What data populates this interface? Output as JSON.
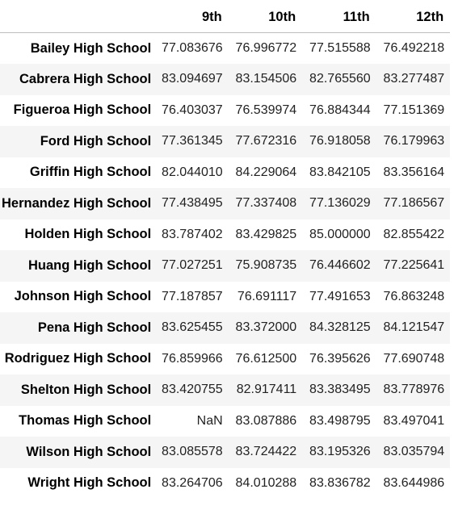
{
  "table": {
    "index_header": "",
    "columns": [
      "9th",
      "10th",
      "11th",
      "12th"
    ],
    "rows": [
      {
        "school": "Bailey High School",
        "values": [
          "77.083676",
          "76.996772",
          "77.515588",
          "76.492218"
        ]
      },
      {
        "school": "Cabrera High School",
        "values": [
          "83.094697",
          "83.154506",
          "82.765560",
          "83.277487"
        ]
      },
      {
        "school": "Figueroa High School",
        "values": [
          "76.403037",
          "76.539974",
          "76.884344",
          "77.151369"
        ]
      },
      {
        "school": "Ford High School",
        "values": [
          "77.361345",
          "77.672316",
          "76.918058",
          "76.179963"
        ]
      },
      {
        "school": "Griffin High School",
        "values": [
          "82.044010",
          "84.229064",
          "83.842105",
          "83.356164"
        ]
      },
      {
        "school": "Hernandez High School",
        "values": [
          "77.438495",
          "77.337408",
          "77.136029",
          "77.186567"
        ]
      },
      {
        "school": "Holden High School",
        "values": [
          "83.787402",
          "83.429825",
          "85.000000",
          "82.855422"
        ]
      },
      {
        "school": "Huang High School",
        "values": [
          "77.027251",
          "75.908735",
          "76.446602",
          "77.225641"
        ]
      },
      {
        "school": "Johnson High School",
        "values": [
          "77.187857",
          "76.691117",
          "77.491653",
          "76.863248"
        ]
      },
      {
        "school": "Pena High School",
        "values": [
          "83.625455",
          "83.372000",
          "84.328125",
          "84.121547"
        ]
      },
      {
        "school": "Rodriguez High School",
        "values": [
          "76.859966",
          "76.612500",
          "76.395626",
          "77.690748"
        ]
      },
      {
        "school": "Shelton High School",
        "values": [
          "83.420755",
          "82.917411",
          "83.383495",
          "83.778976"
        ]
      },
      {
        "school": "Thomas High School",
        "values": [
          "NaN",
          "83.087886",
          "83.498795",
          "83.497041"
        ]
      },
      {
        "school": "Wilson High School",
        "values": [
          "83.085578",
          "83.724422",
          "83.195326",
          "83.035794"
        ]
      },
      {
        "school": "Wright High School",
        "values": [
          "83.264706",
          "84.010288",
          "83.836782",
          "83.644986"
        ]
      }
    ]
  },
  "colors": {
    "stripe": "#f5f5f5",
    "header_border": "#bdbdbd",
    "text": "#000000"
  }
}
